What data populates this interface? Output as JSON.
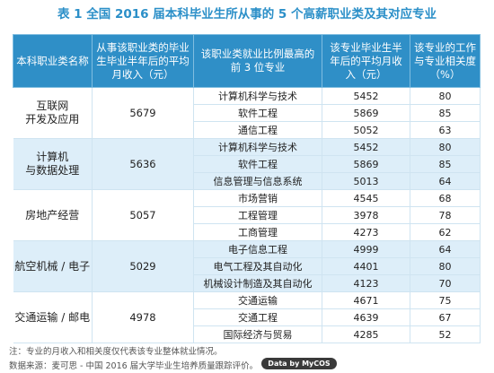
{
  "title": "表 1  全国 2016 届本科毕业生所从事的 5 个高薪职业类及其对应专业",
  "headers": [
    "本科职业类名称",
    "从事该职业类的毕业生毕业半年后的平均月收入（元）",
    "该职业类就业比例最高的前 3 位专业",
    "该专业毕业生半年后的平均月收入（元）",
    "该专业的工作与专业相关度（%）"
  ],
  "groups": [
    {
      "category": "互联网\n开发及应用",
      "avg_income": "5679",
      "rows": [
        {
          "major": "计算机科学与技术",
          "income": "5452",
          "relevance": "80"
        },
        {
          "major": "软件工程",
          "income": "5869",
          "relevance": "85"
        },
        {
          "major": "通信工程",
          "income": "5052",
          "relevance": "63"
        }
      ]
    },
    {
      "category": "计算机\n与数据处理",
      "avg_income": "5636",
      "rows": [
        {
          "major": "计算机科学与技术",
          "income": "5452",
          "relevance": "80"
        },
        {
          "major": "软件工程",
          "income": "5869",
          "relevance": "85"
        },
        {
          "major": "信息管理与信息系统",
          "income": "5013",
          "relevance": "64"
        }
      ]
    },
    {
      "category": "房地产经营",
      "avg_income": "5057",
      "rows": [
        {
          "major": "市场营销",
          "income": "4545",
          "relevance": "68"
        },
        {
          "major": "工程管理",
          "income": "3978",
          "relevance": "78"
        },
        {
          "major": "工商管理",
          "income": "4273",
          "relevance": "62"
        }
      ]
    },
    {
      "category": "航空机械 / 电子",
      "avg_income": "5029",
      "rows": [
        {
          "major": "电子信息工程",
          "income": "4999",
          "relevance": "64"
        },
        {
          "major": "电气工程及其自动化",
          "income": "4401",
          "relevance": "80"
        },
        {
          "major": "机械设计制造及其自动化",
          "income": "4123",
          "relevance": "70"
        }
      ]
    },
    {
      "category": "交通运输 / 邮电",
      "avg_income": "4978",
      "rows": [
        {
          "major": "交通运输",
          "income": "4671",
          "relevance": "75"
        },
        {
          "major": "交通工程",
          "income": "4639",
          "relevance": "67"
        },
        {
          "major": "国际经济与贸易",
          "income": "4285",
          "relevance": "52"
        }
      ]
    }
  ],
  "note": "注：专业的月收入和相关度仅代表该专业整体就业情况。",
  "source": "数据来源：麦可思 - 中国 2016 届大学毕业生培养质量跟踪评价。",
  "badge": "Data by MyCOS",
  "colors": {
    "title": "#2b8fc8",
    "header_bg": "#2f8fc7",
    "row_alt": "#ddeef9"
  }
}
